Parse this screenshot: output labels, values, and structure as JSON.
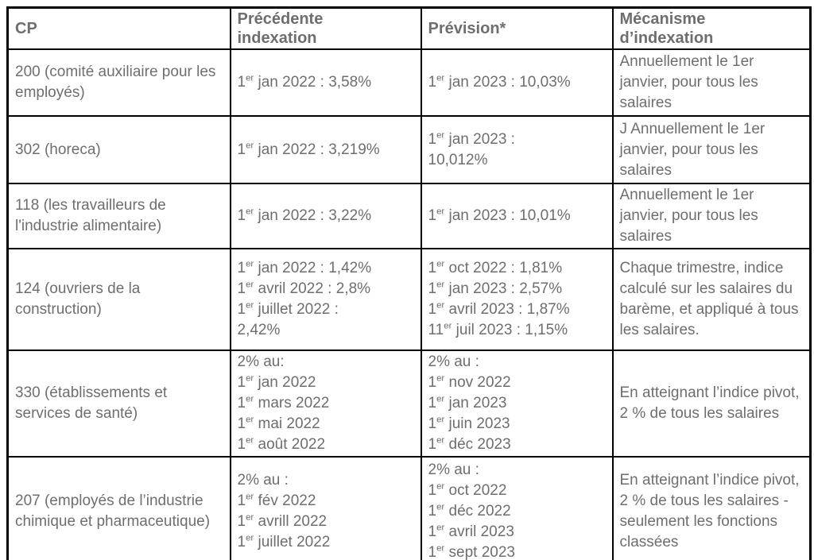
{
  "colors": {
    "text_gray": "#6e6e6e",
    "border_black": "#000000",
    "background": "#ffffff"
  },
  "table": {
    "columns": [
      {
        "key": "cp",
        "label": "CP"
      },
      {
        "key": "previous",
        "label": "Précédente\nindexation"
      },
      {
        "key": "forecast",
        "label": "Prévision*"
      },
      {
        "key": "mechanism",
        "label": "Mécanisme\nd’indexation"
      }
    ],
    "rows": [
      {
        "cp": [
          "200 (comité auxiliaire pour les employés)"
        ],
        "previous": [
          "1^er jan 2022 : 3,58%"
        ],
        "forecast": [
          "1^er jan 2023 : 10,03%"
        ],
        "mechanism": [
          "Annuellement le 1er janvier, pour tous les salaires"
        ]
      },
      {
        "cp": [
          "302 (horeca)"
        ],
        "previous": [
          "1^er jan 2022 : 3,219%"
        ],
        "forecast": [
          "1^er jan 2023 :",
          "10,012%"
        ],
        "mechanism": [
          "J Annuellement le 1er janvier, pour tous les salaires"
        ]
      },
      {
        "cp": [
          "118 (les travailleurs de l'industrie alimentaire)"
        ],
        "previous": [
          "1^er jan 2022 : 3,22%"
        ],
        "forecast": [
          "1^er jan 2023 : 10,01%"
        ],
        "mechanism": [
          "Annuellement le 1er janvier, pour tous les salaires"
        ]
      },
      {
        "cp": [
          "124 (ouvriers de la construction)"
        ],
        "previous": [
          "1^er jan 2022 : 1,42%",
          "1^er avril 2022 : 2,8%",
          "1^er juillet 2022 :",
          "2,42%"
        ],
        "forecast": [
          "1^er oct 2022 : 1,81%",
          "1^er jan 2023 : 2,57%",
          "1^er avril 2023 : 1,87%",
          "11^er juil 2023 : 1,15%"
        ],
        "mechanism": [
          "Chaque trimestre, indice calculé sur les salaires du barème, et appliqué à tous les salaires."
        ]
      },
      {
        "cp": [
          "330 (établissements et services de santé)"
        ],
        "previous": [
          "2% au:",
          "1^er jan 2022",
          "1^er mars 2022",
          "1^er mai 2022",
          "1^er août 2022"
        ],
        "forecast": [
          "2% au :",
          "1^er nov 2022",
          "1^er jan 2023",
          "1^er juin 2023",
          "1^er déc 2023"
        ],
        "mechanism": [
          "En atteignant l’indice pivot, 2 % de tous les salaires"
        ]
      },
      {
        "cp": [
          "207 (employés de l’industrie chimique et pharmaceutique)"
        ],
        "previous": [
          "2% au :",
          "1^er fév 2022",
          "1^er avrill 2022",
          "1^er juillet 2022"
        ],
        "forecast": [
          "2% au :",
          "1^er oct 2022",
          "1^er déc 2022",
          "1^er avril 2023",
          "1^er sept 2023"
        ],
        "mechanism": [
          "En atteignant l’indice pivot, 2 % de tous les salaires - seulement les fonctions classées"
        ]
      }
    ]
  }
}
